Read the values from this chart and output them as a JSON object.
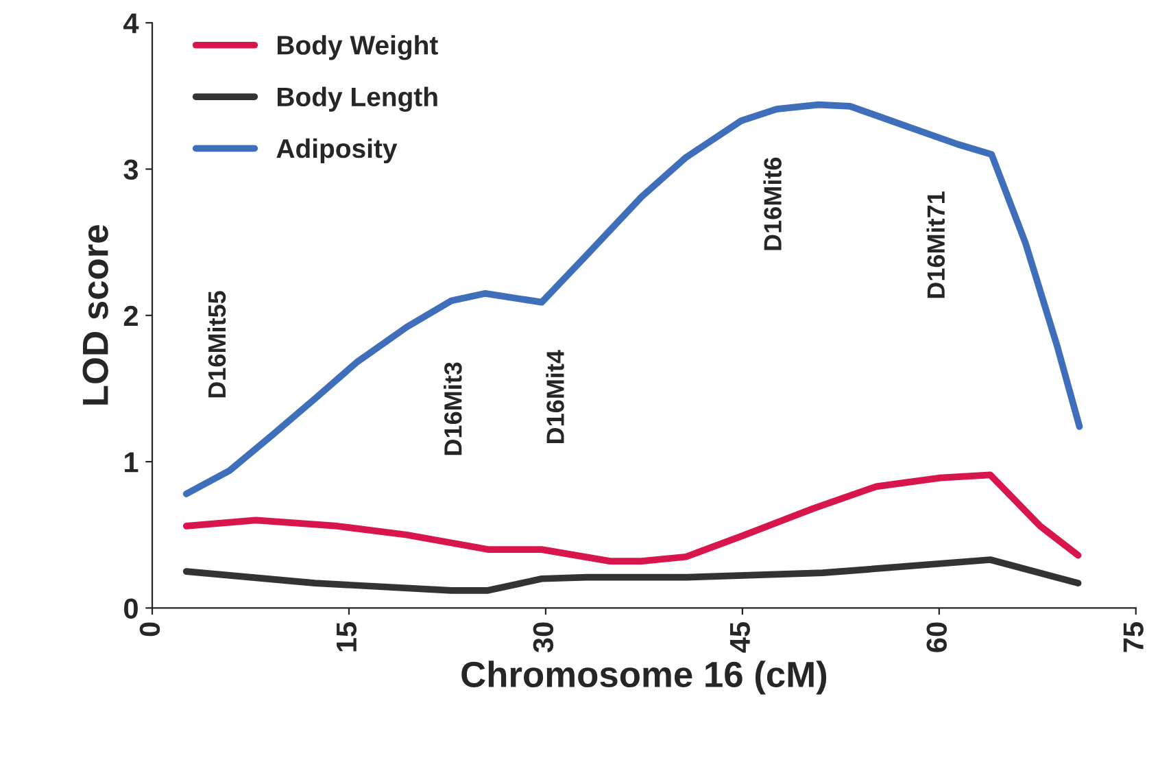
{
  "chart_data": {
    "type": "line",
    "xlabel": "Chromosome 16 (cM)",
    "ylabel": "LOD score",
    "xlim": [
      0,
      75
    ],
    "xticks": [
      0,
      15,
      30,
      45,
      60,
      75
    ],
    "ylim": [
      0,
      4
    ],
    "yticks": [
      0,
      1,
      2,
      3,
      4
    ],
    "grid": false,
    "legend": "top left",
    "marker": "none",
    "line_style": "solid",
    "series": [
      {
        "name": "Body Weight",
        "color": "#d9164b",
        "x": [
          2.6,
          7.9,
          14.1,
          19.4,
          25.6,
          29.7,
          34.9,
          37.3,
          40.7,
          44.9,
          50.4,
          55.2,
          60.1,
          63.9,
          67.7,
          70.6
        ],
        "values": [
          0.56,
          0.6,
          0.56,
          0.5,
          0.4,
          0.4,
          0.32,
          0.32,
          0.35,
          0.49,
          0.68,
          0.83,
          0.89,
          0.91,
          0.56,
          0.36
        ]
      },
      {
        "name": "Body Length",
        "color": "#333333",
        "x": [
          2.6,
          12.4,
          22.8,
          25.6,
          29.7,
          33.1,
          40.7,
          51.1,
          63.9,
          70.6
        ],
        "values": [
          0.25,
          0.17,
          0.12,
          0.12,
          0.2,
          0.21,
          0.21,
          0.24,
          0.33,
          0.17
        ]
      },
      {
        "name": "Adiposity",
        "color": "#3f6fba",
        "x": [
          2.6,
          5.9,
          9.0,
          12.4,
          15.6,
          19.4,
          22.8,
          25.4,
          29.7,
          33.1,
          37.3,
          40.7,
          44.9,
          47.6,
          50.8,
          53.2,
          57.3,
          61.4,
          64.0,
          66.6,
          69.0,
          70.7
        ],
        "values": [
          0.78,
          0.94,
          1.17,
          1.43,
          1.68,
          1.92,
          2.1,
          2.15,
          2.09,
          2.41,
          2.81,
          3.08,
          3.33,
          3.41,
          3.44,
          3.43,
          3.3,
          3.17,
          3.1,
          2.49,
          1.79,
          1.24
        ]
      }
    ],
    "annotations": [
      "D16Mit55",
      "D16Mit3",
      "D16Mit4",
      "D16Mit6",
      "D16Mit71"
    ]
  }
}
